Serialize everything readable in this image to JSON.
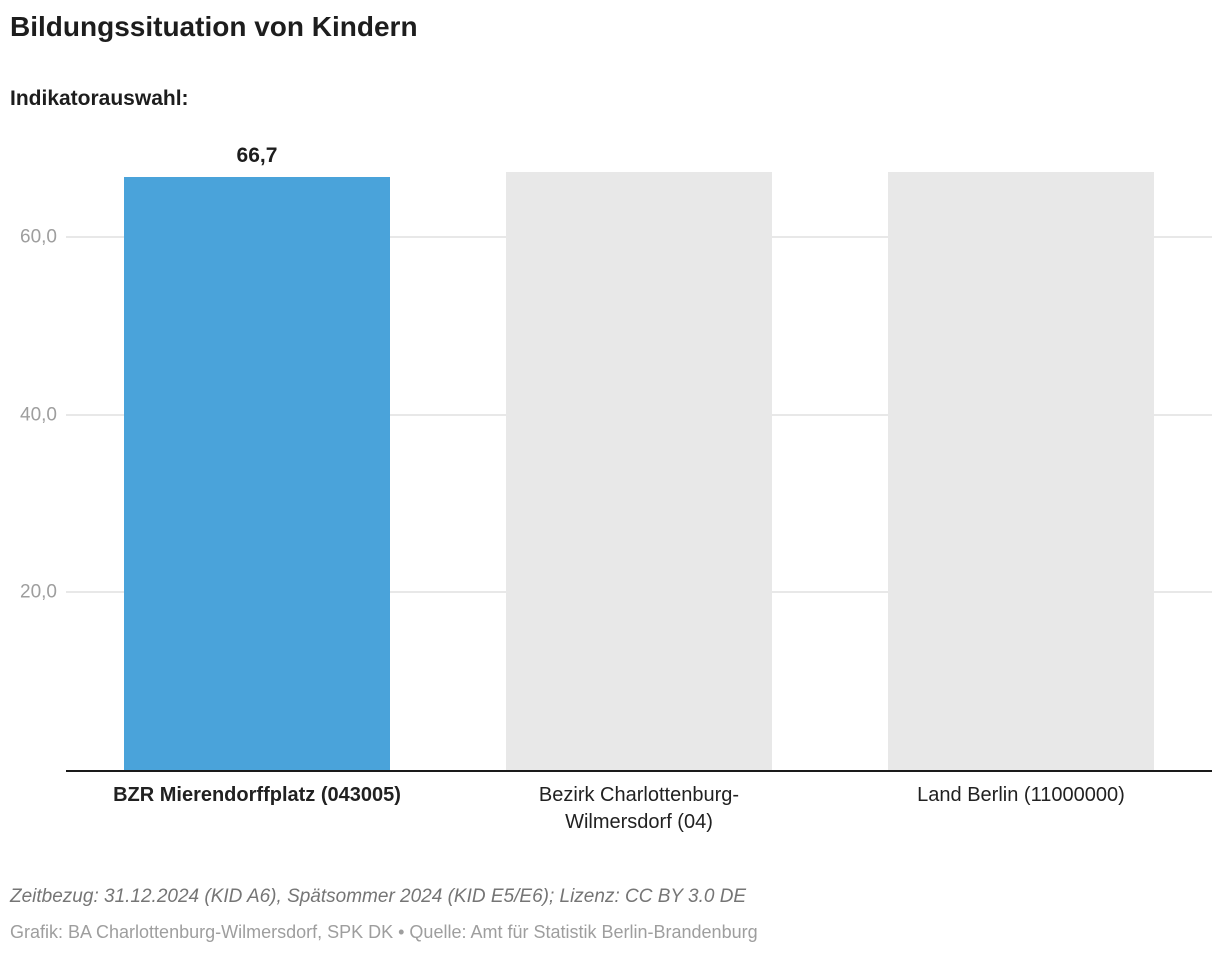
{
  "header": {
    "title": "Bildungssituation von Kindern",
    "subtitle": "Indikatorauswahl:"
  },
  "chart_data": {
    "type": "bar",
    "title": "Bildungssituation von Kindern",
    "categories": [
      "BZR Mierendorffplatz (043005)",
      "Bezirk Charlottenburg-Wilmersdorf (04)",
      "Land Berlin (11000000)"
    ],
    "category_lines": [
      [
        "BZR Mierendorffplatz (043005)"
      ],
      [
        "Bezirk Charlottenburg-",
        "Wilmersdorf (04)"
      ],
      [
        "Land Berlin (11000000)"
      ]
    ],
    "values": [
      66.7,
      null,
      null
    ],
    "value_labels": [
      "66,7",
      "",
      ""
    ],
    "no_data_bars_full_height": true,
    "bar_colors": [
      "#4aa3da",
      "#e8e8e8",
      "#e8e8e8"
    ],
    "highlight_index": 0,
    "yticks": [
      20,
      40,
      60
    ],
    "ytick_labels": [
      "20,0",
      "40,0",
      "60,0"
    ],
    "ylim": [
      0,
      67.3
    ],
    "grid": true,
    "xlabel": "",
    "ylabel": "",
    "legend": false
  },
  "footer": {
    "line1": "Zeitbezug: 31.12.2024 (KID A6), Spätsommer 2024 (KID E5/E6); Lizenz: CC BY 3.0 DE",
    "line2": "Grafik: BA Charlottenburg-Wilmersdorf, SPK DK • Quelle: Amt für Statistik Berlin-Brandenburg"
  },
  "colors": {
    "accent_blue": "#4aa3da",
    "neutral_bar": "#e8e8e8",
    "gridline": "#e8e8e8",
    "axis_line": "#1a1a1a",
    "tick_text": "#9e9e9e",
    "text_dark": "#1d1d1d",
    "footer1_text": "#757575",
    "footer2_text": "#9e9e9e"
  }
}
